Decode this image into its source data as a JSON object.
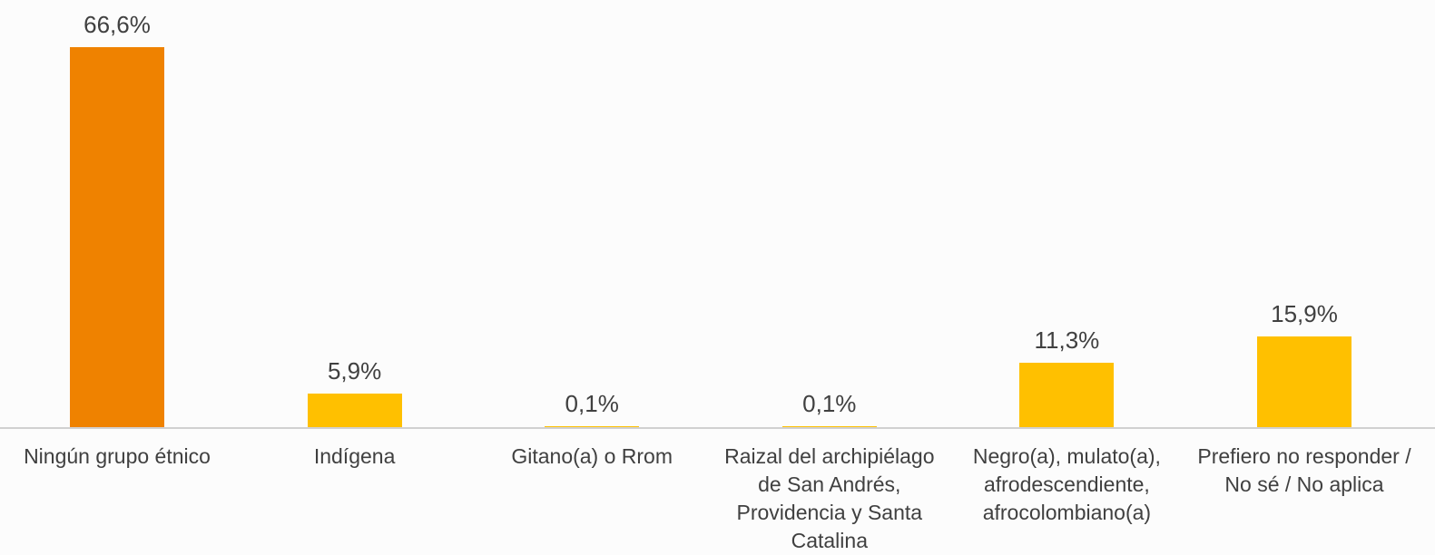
{
  "chart_data": {
    "type": "bar",
    "categories": [
      "Ningún grupo étnico",
      "Indígena",
      "Gitano(a) o Rrom",
      "Raizal del archipiélago de San Andrés, Providencia y Santa Catalina",
      "Negro(a), mulato(a), afrodescendiente, afrocolombiano(a)",
      "Prefiero no responder / No sé / No aplica"
    ],
    "values": [
      66.6,
      5.9,
      0.1,
      0.1,
      11.3,
      15.9
    ],
    "value_labels": [
      "66,6%",
      "5,9%",
      "0,1%",
      "0,1%",
      "11,3%",
      "15,9%"
    ],
    "colors": [
      "#ef8200",
      "#ffc000",
      "#ffc000",
      "#ffc000",
      "#ffc000",
      "#ffc000"
    ]
  }
}
